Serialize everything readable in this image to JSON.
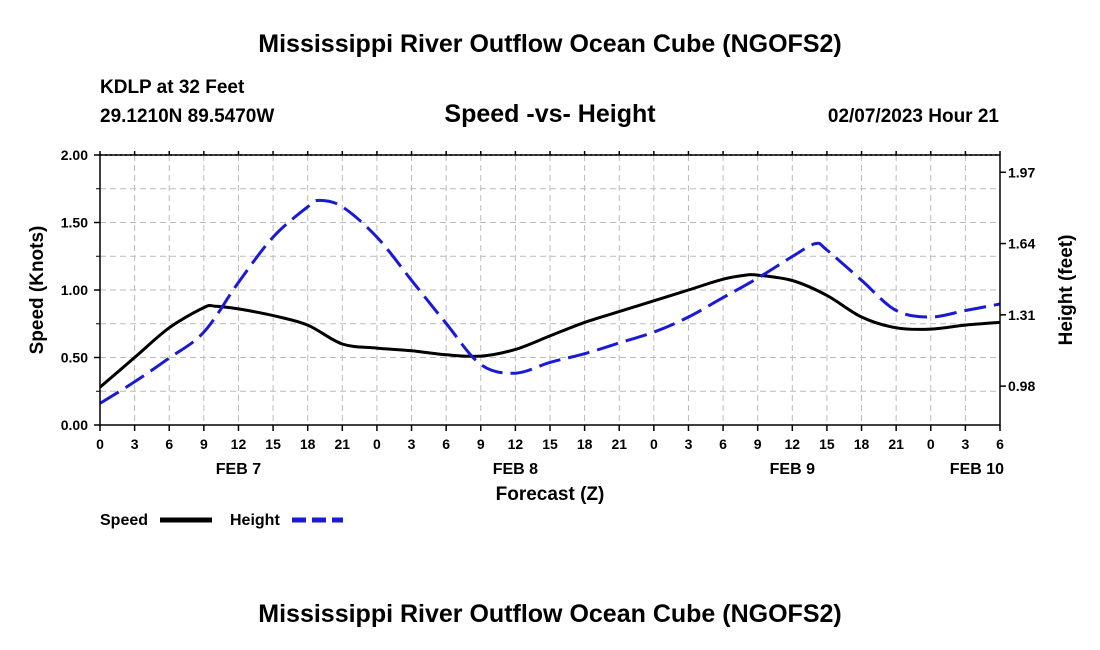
{
  "header": {
    "title": "Mississippi River Outflow Ocean Cube (NGOFS2)",
    "station": "KDLP at 32 Feet",
    "coords": "29.1210N  89.5470W",
    "subtitle": "Speed -vs- Height",
    "datetime": "02/07/2023 Hour 21"
  },
  "footer": {
    "title": "Mississippi River Outflow Ocean Cube (NGOFS2)"
  },
  "colors": {
    "speed": "#000000",
    "height": "#1a1ad6",
    "grid": "#bbbbbb"
  },
  "chart_data": {
    "type": "line",
    "title": "Speed -vs- Height",
    "xlabel": "Forecast (Z)",
    "ylabel": "Speed (Knots)",
    "y2label": "Height (feet)",
    "xlim": [
      0,
      78
    ],
    "ylim": [
      0,
      2.0
    ],
    "y2lim": [
      0.8,
      2.05
    ],
    "grid": true,
    "legend_position": "bottom-left",
    "x_tick_hours": [
      0,
      3,
      6,
      9,
      12,
      15,
      18,
      21,
      24,
      27,
      30,
      33,
      36,
      39,
      42,
      45,
      48,
      51,
      54,
      57,
      60,
      63,
      66,
      69,
      72,
      75,
      78
    ],
    "x_tick_labels": [
      "0",
      "3",
      "6",
      "9",
      "12",
      "15",
      "18",
      "21",
      "0",
      "3",
      "6",
      "9",
      "12",
      "15",
      "18",
      "21",
      "0",
      "3",
      "6",
      "9",
      "12",
      "15",
      "18",
      "21",
      "0",
      "3",
      "6"
    ],
    "day_labels": [
      {
        "hour": 12,
        "label": "FEB 7"
      },
      {
        "hour": 36,
        "label": "FEB 8"
      },
      {
        "hour": 60,
        "label": "FEB 9"
      },
      {
        "hour": 76,
        "label": "FEB 10"
      }
    ],
    "y_ticks": [
      0.0,
      0.5,
      1.0,
      1.5,
      2.0
    ],
    "y_tick_labels": [
      "0.00",
      "0.50",
      "1.00",
      "1.50",
      "2.00"
    ],
    "y2_ticks": [
      0.98,
      1.31,
      1.64,
      1.97
    ],
    "y2_tick_labels": [
      "0.98",
      "1.31",
      "1.64",
      "1.97"
    ],
    "series": [
      {
        "name": "Speed",
        "axis": "left",
        "style": "solid",
        "x": [
          0,
          3,
          6,
          9,
          10,
          12,
          15,
          18,
          21,
          24,
          27,
          30,
          33,
          36,
          39,
          42,
          45,
          48,
          51,
          54,
          56,
          57,
          60,
          63,
          66,
          69,
          72,
          75,
          78
        ],
        "values": [
          0.28,
          0.5,
          0.72,
          0.87,
          0.88,
          0.86,
          0.81,
          0.74,
          0.6,
          0.57,
          0.55,
          0.52,
          0.51,
          0.56,
          0.66,
          0.76,
          0.84,
          0.92,
          1.0,
          1.08,
          1.11,
          1.11,
          1.07,
          0.96,
          0.8,
          0.72,
          0.71,
          0.74,
          0.76
        ]
      },
      {
        "name": "Height",
        "axis": "right",
        "style": "dashed",
        "x": [
          0,
          3,
          6,
          9,
          12,
          15,
          18,
          19,
          21,
          24,
          27,
          30,
          33,
          36,
          39,
          42,
          45,
          48,
          51,
          54,
          57,
          60,
          62,
          63,
          66,
          69,
          72,
          75,
          78
        ],
        "values": [
          0.9,
          1.0,
          1.11,
          1.23,
          1.46,
          1.67,
          1.81,
          1.84,
          1.81,
          1.67,
          1.47,
          1.27,
          1.08,
          1.04,
          1.09,
          1.13,
          1.18,
          1.23,
          1.3,
          1.39,
          1.48,
          1.58,
          1.64,
          1.61,
          1.47,
          1.33,
          1.3,
          1.33,
          1.36
        ]
      }
    ]
  }
}
